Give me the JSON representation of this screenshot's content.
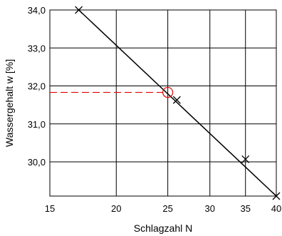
{
  "chart_data": {
    "type": "line",
    "xlabel": "Schlagzahl N",
    "ylabel": "Wassergehalt w [%]",
    "x_scale": "log",
    "xlim": [
      15,
      40
    ],
    "ylim": [
      29.1,
      34.0
    ],
    "x_ticks": [
      15,
      20,
      25,
      30,
      35,
      40
    ],
    "x_tick_labels": [
      "15",
      "20",
      "25",
      "30",
      "35",
      "40"
    ],
    "y_ticks": [
      30.0,
      31.0,
      32.0,
      33.0,
      34.0
    ],
    "y_tick_labels": [
      "30,0",
      "31,0",
      "32,0",
      "33,0",
      "34,0"
    ],
    "grid": true,
    "series": [
      {
        "values": [
          {
            "x": 17,
            "y": 34.0
          },
          {
            "x": 26,
            "y": 31.63
          },
          {
            "x": 35,
            "y": 30.07
          },
          {
            "x": 40,
            "y": 29.1
          }
        ],
        "marker": "x",
        "color": "#000000"
      }
    ],
    "fit_line": {
      "from": {
        "x": 17,
        "y": 34.0
      },
      "to": {
        "x": 40,
        "y": 29.1
      },
      "color": "#000000"
    },
    "annotation": {
      "x": 25,
      "y": 31.83,
      "marker": "circle",
      "guide": "dashed-horizontal-to-y-axis",
      "color": "#e00000"
    }
  }
}
